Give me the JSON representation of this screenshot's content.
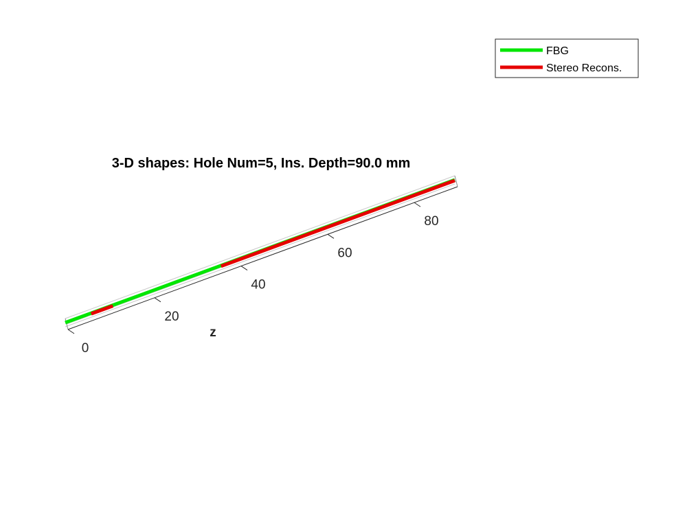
{
  "chart_data": {
    "type": "line",
    "title": "3-D shapes: Hole Num=5, Ins. Depth=90.0 mm",
    "zlabel": "z",
    "zlim": [
      0,
      90
    ],
    "z_ticks": [
      0,
      20,
      40,
      60,
      80
    ],
    "grid": true,
    "view": "3d",
    "legend_position": "top-right",
    "series": [
      {
        "name": "FBG",
        "color": "#00e600",
        "z": [
          0,
          10,
          20,
          30,
          36,
          50,
          70,
          90
        ]
      },
      {
        "name": "Stereo Recons.",
        "color": "#e60000",
        "segments": [
          {
            "z": [
              6,
              11
            ]
          },
          {
            "z": [
              36,
              50,
              70,
              90
            ]
          }
        ]
      }
    ]
  }
}
